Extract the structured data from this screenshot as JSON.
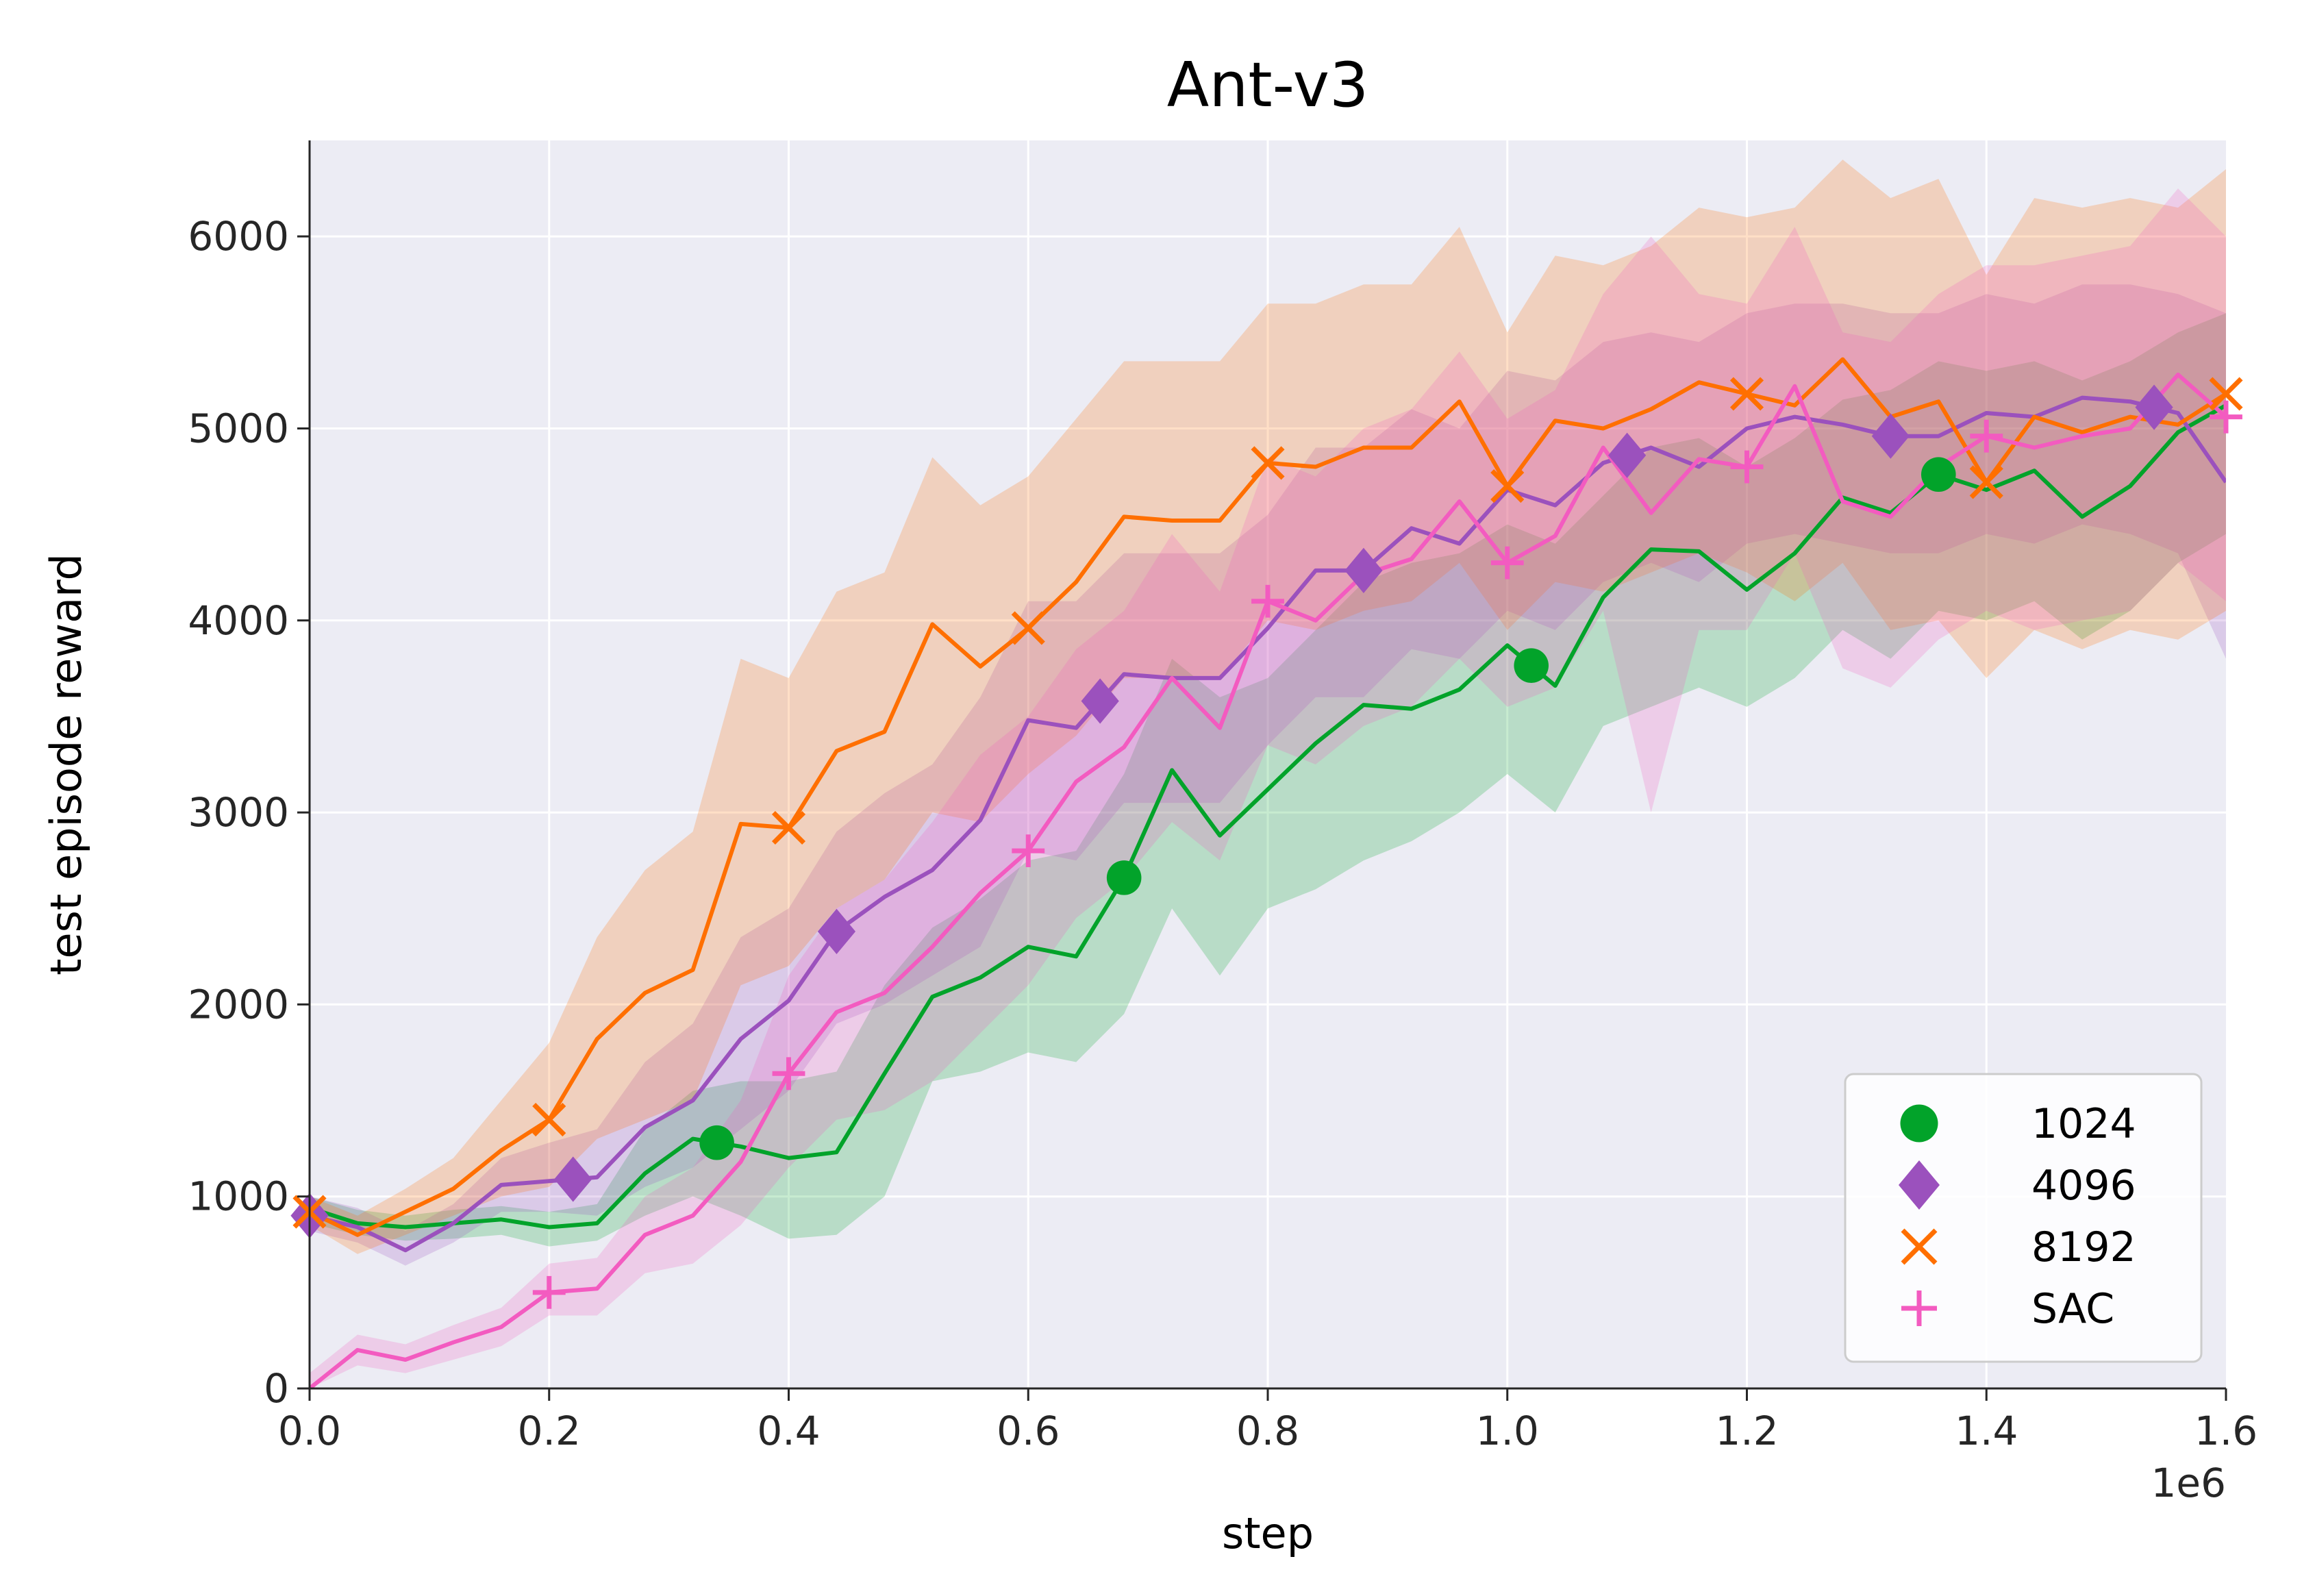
{
  "chart_data": {
    "type": "line",
    "title": "Ant-v3",
    "xlabel": "step",
    "ylabel": "test episode reward",
    "x_scale_label": "1e6",
    "xlim": [
      0,
      1.6
    ],
    "ylim": [
      0,
      6500
    ],
    "xticks": [
      "0.0",
      "0.2",
      "0.4",
      "0.6",
      "0.8",
      "1.0",
      "1.2",
      "1.4",
      "1.6"
    ],
    "yticks": [
      "0",
      "1000",
      "2000",
      "3000",
      "4000",
      "5000",
      "6000"
    ],
    "grid": true,
    "legend_position": "lower-right",
    "series": [
      {
        "name": "1024",
        "color": "#02a32a",
        "marker": "circle",
        "x": [
          0.0,
          0.04,
          0.08,
          0.12,
          0.16,
          0.2,
          0.24,
          0.28,
          0.32,
          0.36,
          0.4,
          0.44,
          0.48,
          0.52,
          0.56,
          0.6,
          0.64,
          0.68,
          0.72,
          0.76,
          0.8,
          0.84,
          0.88,
          0.92,
          0.96,
          1.0,
          1.04,
          1.08,
          1.12,
          1.16,
          1.2,
          1.24,
          1.28,
          1.32,
          1.36,
          1.4,
          1.44,
          1.48,
          1.52,
          1.56,
          1.6
        ],
        "y": [
          940,
          860,
          840,
          860,
          880,
          840,
          860,
          1120,
          1300,
          1260,
          1200,
          1230,
          1640,
          2040,
          2140,
          2300,
          2250,
          2660,
          3220,
          2880,
          3120,
          3360,
          3560,
          3540,
          3640,
          3870,
          3660,
          4120,
          4370,
          4360,
          4160,
          4350,
          4640,
          4560,
          4760,
          4680,
          4780,
          4540,
          4700,
          4980,
          5120
        ],
        "lower": [
          860,
          800,
          770,
          780,
          800,
          740,
          770,
          900,
          1000,
          900,
          780,
          800,
          1000,
          1600,
          1650,
          1750,
          1700,
          1950,
          2500,
          2150,
          2500,
          2600,
          2750,
          2850,
          3000,
          3200,
          3000,
          3450,
          3550,
          3650,
          3550,
          3700,
          3950,
          3800,
          4050,
          4000,
          4100,
          3900,
          4050,
          4300,
          4450
        ],
        "upper": [
          1000,
          930,
          900,
          930,
          950,
          920,
          960,
          1350,
          1550,
          1600,
          1600,
          1650,
          2100,
          2400,
          2550,
          2750,
          2800,
          3200,
          3800,
          3600,
          3700,
          3950,
          4200,
          4300,
          4350,
          4500,
          4400,
          4650,
          4900,
          4950,
          4800,
          4950,
          5150,
          5200,
          5350,
          5300,
          5350,
          5250,
          5350,
          5500,
          5600
        ],
        "marker_x": [
          0.34,
          0.68,
          1.02,
          1.36
        ]
      },
      {
        "name": "4096",
        "color": "#9b51bd",
        "marker": "diamond",
        "x": [
          0.0,
          0.04,
          0.08,
          0.12,
          0.16,
          0.2,
          0.24,
          0.28,
          0.32,
          0.36,
          0.4,
          0.44,
          0.48,
          0.52,
          0.56,
          0.6,
          0.64,
          0.68,
          0.72,
          0.76,
          0.8,
          0.84,
          0.88,
          0.92,
          0.96,
          1.0,
          1.04,
          1.08,
          1.12,
          1.16,
          1.2,
          1.24,
          1.28,
          1.32,
          1.36,
          1.4,
          1.44,
          1.48,
          1.52,
          1.56,
          1.6
        ],
        "y": [
          900,
          840,
          720,
          860,
          1060,
          1080,
          1100,
          1360,
          1500,
          1820,
          2020,
          2380,
          2560,
          2700,
          2960,
          3480,
          3440,
          3720,
          3700,
          3700,
          3960,
          4260,
          4260,
          4480,
          4400,
          4680,
          4600,
          4820,
          4900,
          4800,
          5000,
          5060,
          5020,
          4960,
          4960,
          5080,
          5060,
          5160,
          5140,
          5080,
          4720
        ],
        "lower": [
          820,
          760,
          640,
          760,
          920,
          920,
          900,
          1050,
          1150,
          1350,
          1550,
          1900,
          2000,
          2150,
          2300,
          2800,
          2750,
          3050,
          3050,
          3050,
          3350,
          3600,
          3600,
          3850,
          3800,
          4050,
          3950,
          4200,
          4300,
          4200,
          4400,
          4450,
          4400,
          4350,
          4350,
          4450,
          4400,
          4500,
          4450,
          4350,
          3800
        ],
        "upper": [
          1000,
          940,
          820,
          960,
          1200,
          1280,
          1350,
          1700,
          1900,
          2350,
          2500,
          2900,
          3100,
          3250,
          3600,
          4100,
          4100,
          4350,
          4350,
          4350,
          4550,
          4900,
          4900,
          5100,
          5000,
          5300,
          5250,
          5450,
          5500,
          5450,
          5600,
          5650,
          5650,
          5600,
          5600,
          5700,
          5650,
          5750,
          5750,
          5700,
          5600
        ],
        "marker_x": [
          0.0,
          0.22,
          0.44,
          0.66,
          0.88,
          1.1,
          1.32,
          1.54
        ]
      },
      {
        "name": "8192",
        "color": "#ff6f00",
        "marker": "x",
        "x": [
          0.0,
          0.04,
          0.08,
          0.12,
          0.16,
          0.2,
          0.24,
          0.28,
          0.32,
          0.36,
          0.4,
          0.44,
          0.48,
          0.52,
          0.56,
          0.6,
          0.64,
          0.68,
          0.72,
          0.76,
          0.8,
          0.84,
          0.88,
          0.92,
          0.96,
          1.0,
          1.04,
          1.08,
          1.12,
          1.16,
          1.2,
          1.24,
          1.28,
          1.32,
          1.36,
          1.4,
          1.44,
          1.48,
          1.52,
          1.56,
          1.6
        ],
        "y": [
          920,
          800,
          920,
          1040,
          1240,
          1400,
          1820,
          2060,
          2180,
          2940,
          2920,
          3320,
          3420,
          3980,
          3760,
          3960,
          4200,
          4540,
          4520,
          4520,
          4820,
          4800,
          4900,
          4900,
          5140,
          4700,
          5040,
          5000,
          5100,
          5240,
          5180,
          5120,
          5360,
          5060,
          5140,
          4720,
          5060,
          4980,
          5060,
          5020,
          5180
        ],
        "lower": [
          850,
          700,
          800,
          900,
          1000,
          1050,
          1300,
          1400,
          1500,
          2100,
          2200,
          2500,
          2650,
          3000,
          2950,
          3200,
          3400,
          3700,
          3700,
          3700,
          4000,
          3950,
          4050,
          4100,
          4300,
          3950,
          4200,
          4150,
          4250,
          4350,
          4250,
          4100,
          4300,
          3950,
          4000,
          3700,
          3950,
          3850,
          3950,
          3900,
          4050
        ],
        "upper": [
          1000,
          900,
          1040,
          1200,
          1500,
          1800,
          2350,
          2700,
          2900,
          3800,
          3700,
          4150,
          4250,
          4850,
          4600,
          4750,
          5050,
          5350,
          5350,
          5350,
          5650,
          5650,
          5750,
          5750,
          6050,
          5500,
          5900,
          5850,
          5950,
          6150,
          6100,
          6150,
          6400,
          6200,
          6300,
          5800,
          6200,
          6150,
          6200,
          6150,
          6350
        ],
        "marker_x": [
          0.0,
          0.2,
          0.4,
          0.6,
          0.8,
          1.0,
          1.2,
          1.4,
          1.6
        ]
      },
      {
        "name": "SAC",
        "color": "#f35bc0",
        "marker": "plus",
        "x": [
          0.0,
          0.04,
          0.08,
          0.12,
          0.16,
          0.2,
          0.24,
          0.28,
          0.32,
          0.36,
          0.4,
          0.44,
          0.48,
          0.52,
          0.56,
          0.6,
          0.64,
          0.68,
          0.72,
          0.76,
          0.8,
          0.84,
          0.88,
          0.92,
          0.96,
          1.0,
          1.04,
          1.08,
          1.12,
          1.16,
          1.2,
          1.24,
          1.28,
          1.32,
          1.36,
          1.4,
          1.44,
          1.48,
          1.52,
          1.56,
          1.6
        ],
        "y": [
          0,
          200,
          150,
          240,
          320,
          500,
          520,
          800,
          900,
          1180,
          1640,
          1960,
          2060,
          2300,
          2580,
          2800,
          3160,
          3340,
          3700,
          3440,
          4100,
          4000,
          4240,
          4320,
          4620,
          4300,
          4440,
          4900,
          4560,
          4840,
          4800,
          5220,
          4620,
          4540,
          4800,
          4960,
          4900,
          4960,
          5000,
          5280,
          5060
        ],
        "lower": [
          0,
          120,
          80,
          150,
          220,
          380,
          380,
          600,
          650,
          850,
          1150,
          1400,
          1450,
          1600,
          1850,
          2100,
          2450,
          2650,
          2950,
          2750,
          3350,
          3250,
          3450,
          3550,
          3800,
          3550,
          3650,
          4050,
          3000,
          3950,
          3950,
          4350,
          3750,
          3650,
          3900,
          4050,
          3950,
          4000,
          4050,
          4300,
          4100
        ],
        "upper": [
          80,
          280,
          230,
          330,
          420,
          650,
          680,
          1000,
          1150,
          1500,
          2150,
          2500,
          2650,
          2950,
          3300,
          3500,
          3850,
          4050,
          4450,
          4150,
          4850,
          4750,
          5000,
          5100,
          5400,
          5050,
          5200,
          5700,
          6000,
          5700,
          5650,
          6050,
          5500,
          5450,
          5700,
          5850,
          5850,
          5900,
          5950,
          6250,
          6000
        ],
        "marker_x": [
          0.2,
          0.4,
          0.6,
          0.8,
          1.0,
          1.2,
          1.4,
          1.6
        ]
      }
    ]
  }
}
